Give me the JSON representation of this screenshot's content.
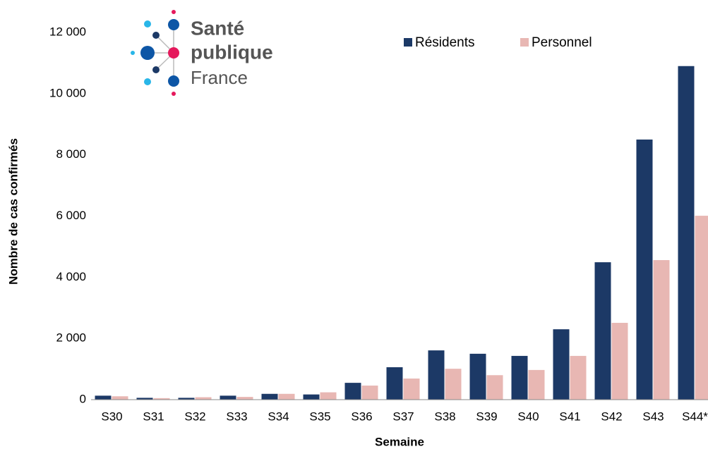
{
  "chart_data": {
    "type": "bar",
    "logo": {
      "lines": [
        "Santé",
        "publique",
        "France"
      ]
    },
    "x_label": "Semaine",
    "y_label": "Nombre de cas confirmés",
    "categories": [
      "S30",
      "S31",
      "S32",
      "S33",
      "S34",
      "S35",
      "S36",
      "S37",
      "S38",
      "S39",
      "S40",
      "S41",
      "S42",
      "S43",
      "S44*"
    ],
    "series": [
      {
        "name": "Résidents",
        "color": "#1c3966",
        "values": [
          130,
          60,
          60,
          130,
          190,
          170,
          550,
          1060,
          1610,
          1500,
          1430,
          2300,
          4490,
          8500,
          10900
        ]
      },
      {
        "name": "Personnel",
        "color": "#e8b7b3",
        "values": [
          110,
          50,
          80,
          90,
          190,
          240,
          460,
          690,
          1010,
          800,
          970,
          1430,
          2510,
          4560,
          6010
        ]
      }
    ],
    "ylim": [
      0,
      12000
    ],
    "yticks": [
      0,
      {
        "value": 2000,
        "label": "2 000"
      },
      {
        "value": 4000,
        "label": "4 000"
      },
      {
        "value": 6000,
        "label": "6 000"
      },
      {
        "value": 8000,
        "label": "8 000"
      },
      {
        "value": 10000,
        "label": "10 000"
      },
      {
        "value": 12000,
        "label": "12 000"
      }
    ],
    "grid": false,
    "legend": "top"
  }
}
